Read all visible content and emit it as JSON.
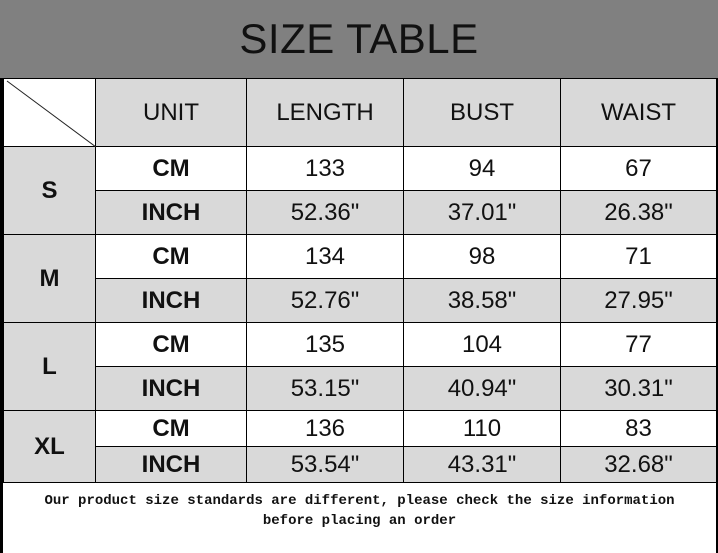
{
  "title": "SIZE TABLE",
  "headers": [
    "UNIT",
    "LENGTH",
    "BUST",
    "WAIST"
  ],
  "sizes": [
    {
      "size": "S",
      "rows": [
        [
          "CM",
          "133",
          "94",
          "67"
        ],
        [
          "INCH",
          "52.36\"",
          "37.01\"",
          "26.38\""
        ]
      ]
    },
    {
      "size": "M",
      "rows": [
        [
          "CM",
          "134",
          "98",
          "71"
        ],
        [
          "INCH",
          "52.76\"",
          "38.58\"",
          "27.95\""
        ]
      ]
    },
    {
      "size": "L",
      "rows": [
        [
          "CM",
          "135",
          "104",
          "77"
        ],
        [
          "INCH",
          "53.15\"",
          "40.94\"",
          "30.31\""
        ]
      ]
    },
    {
      "size": "XL",
      "rows": [
        [
          "CM",
          "136",
          "110",
          "83"
        ],
        [
          "INCH",
          "53.54\"",
          "43.31\"",
          "32.68\""
        ]
      ]
    }
  ],
  "note_line1": "Our product size standards are different, please check the size information",
  "note_line2": "before placing an order",
  "colors": {
    "title_bg": "#808080",
    "header_bg": "#d9d9d9",
    "inch_row_bg": "#d9d9d9",
    "cm_row_bg": "#ffffff"
  }
}
